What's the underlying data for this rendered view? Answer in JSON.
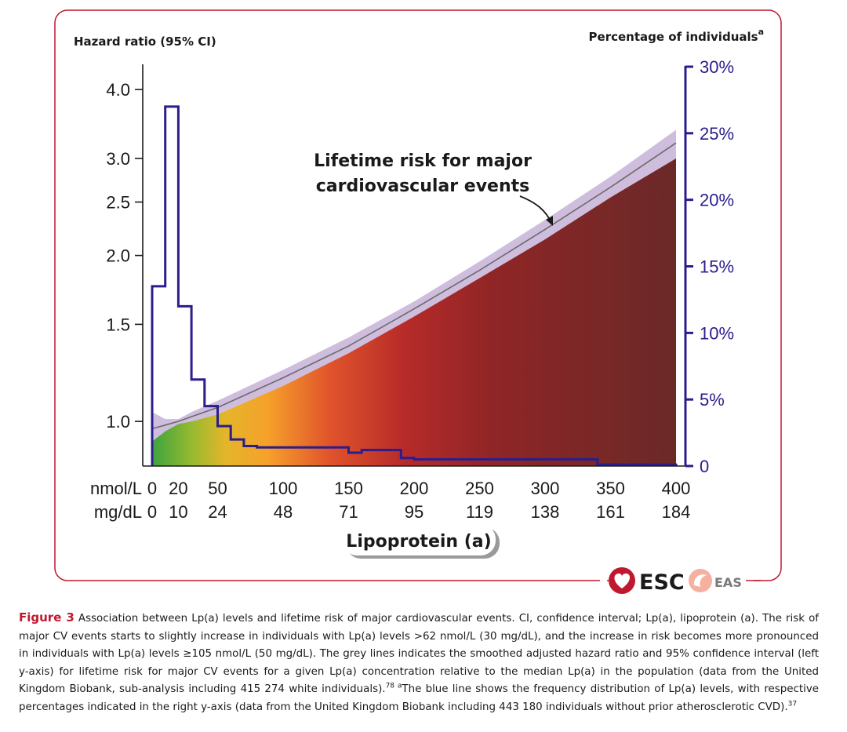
{
  "chart_data": {
    "type": "line",
    "title": "",
    "left_axis_title": "Hazard ratio (95% CI)",
    "right_axis_title": "Percentage of individuals",
    "right_axis_title_sup": "a",
    "xlabel": "Lipoprotein (a)",
    "x_unit_labels": [
      "nmol/L",
      "mg/dL"
    ],
    "x_ticks_nmol": [
      "0",
      "20",
      "50",
      "100",
      "150",
      "200",
      "250",
      "300",
      "350",
      "400"
    ],
    "x_ticks_mgdl": [
      "0",
      "10",
      "24",
      "48",
      "71",
      "95",
      "119",
      "138",
      "161",
      "184"
    ],
    "x_tick_values": [
      0,
      20,
      50,
      100,
      150,
      200,
      250,
      300,
      350,
      400
    ],
    "xlim": [
      0,
      400
    ],
    "left_ticks": [
      "4.0",
      "3.0",
      "2.5",
      "2.0",
      "1.5",
      "1.0"
    ],
    "left_tick_values": [
      4.0,
      3.0,
      2.5,
      2.0,
      1.5,
      1.0
    ],
    "left_scale": "log",
    "ylim_left": [
      0.83,
      4.4
    ],
    "right_ticks": [
      "30%",
      "25%",
      "20%",
      "15%",
      "10%",
      "5%",
      "0"
    ],
    "right_tick_values": [
      30,
      25,
      20,
      15,
      10,
      5,
      0
    ],
    "ylim_right": [
      0,
      30
    ],
    "annotation": [
      "Lifetime risk for major",
      "cardiovascular events"
    ],
    "series": [
      {
        "name": "Lifetime risk hazard ratio (smoothed)",
        "axis": "left",
        "x": [
          0,
          10,
          20,
          30,
          50,
          100,
          150,
          200,
          250,
          300,
          350,
          400
        ],
        "y": [
          0.97,
          0.985,
          1.0,
          1.02,
          1.06,
          1.2,
          1.37,
          1.6,
          1.88,
          2.23,
          2.66,
          3.2
        ]
      },
      {
        "name": "95% CI upper",
        "axis": "left",
        "x": [
          0,
          10,
          20,
          30,
          50,
          100,
          150,
          200,
          250,
          300,
          350,
          400
        ],
        "y": [
          1.04,
          1.01,
          1.01,
          1.04,
          1.09,
          1.24,
          1.42,
          1.65,
          1.95,
          2.32,
          2.78,
          3.38
        ]
      },
      {
        "name": "95% CI lower",
        "axis": "left",
        "x": [
          0,
          10,
          20,
          30,
          50,
          100,
          150,
          200,
          250,
          300,
          350,
          400
        ],
        "y": [
          0.92,
          0.96,
          0.99,
          1.0,
          1.03,
          1.16,
          1.33,
          1.55,
          1.82,
          2.14,
          2.55,
          3.0
        ]
      },
      {
        "name": "Frequency distribution of Lp(a) (%)",
        "axis": "right",
        "step_x": [
          0,
          10,
          20,
          30,
          40,
          50,
          60,
          70,
          80,
          150,
          160,
          190,
          200,
          340,
          400
        ],
        "step_y": [
          13.5,
          27,
          12,
          6.5,
          4.5,
          3,
          2,
          1.5,
          1.4,
          1,
          1.2,
          0.6,
          0.5,
          0.1,
          0
        ]
      }
    ]
  },
  "logos": {
    "esc": "ESC",
    "eas": "EAS"
  },
  "caption": {
    "label": "Figure 3",
    "text_1": " Association between Lp(a) levels and lifetime risk of major cardiovascular events. CI, confidence interval; Lp(a), lipoprotein (a). The risk of major CV events starts to slightly increase in individuals with Lp(a) levels >62 nmol/L (30 mg/dL), and the increase in risk becomes more pronounced in individuals with Lp(a) levels ≥105 nmol/L (50 mg/dL). The grey lines indicates the smoothed adjusted hazard ratio and 95% confidence interval (left y-axis) for lifetime risk for major CV events for a given Lp(a) concentration relative to the median Lp(a) in the population (data from the United Kingdom Biobank, sub-analysis including 415 274 white individuals).",
    "ref_1": "78",
    "sup_a": " a",
    "text_2": "The blue line shows the frequency distribution of Lp(a) levels, with respective percentages indicated in the right y-axis (data from the United Kingdom Biobank including 443 180 individuals without prior atherosclerotic CVD).",
    "ref_2": "37"
  }
}
